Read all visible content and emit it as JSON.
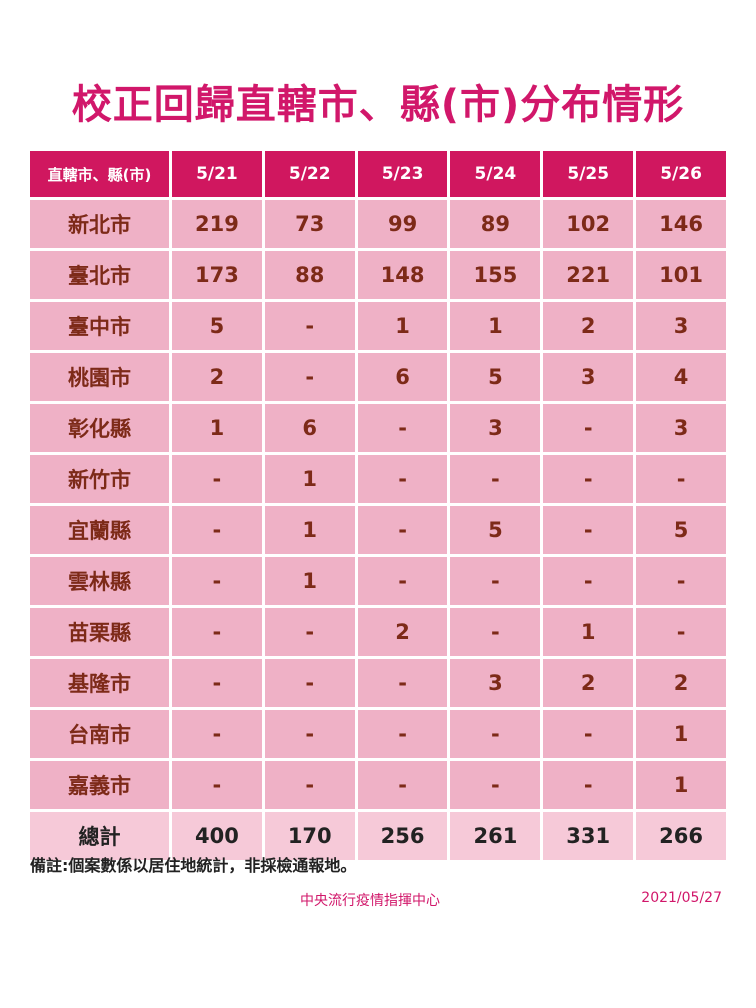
{
  "title": "校正回歸直轄市、縣(市)分布情形",
  "table": {
    "header": [
      "直轄市、縣(市)",
      "5/21",
      "5/22",
      "5/23",
      "5/24",
      "5/25",
      "5/26"
    ],
    "rows": [
      [
        "新北市",
        219,
        73,
        99,
        89,
        102,
        146
      ],
      [
        "臺北市",
        173,
        88,
        148,
        155,
        221,
        101
      ],
      [
        "臺中市",
        5,
        "-",
        1,
        1,
        2,
        3
      ],
      [
        "桃園市",
        2,
        "-",
        6,
        5,
        3,
        4
      ],
      [
        "彰化縣",
        1,
        6,
        "-",
        3,
        "-",
        3
      ],
      [
        "新竹市",
        "-",
        1,
        "-",
        "-",
        "-",
        "-"
      ],
      [
        "宜蘭縣",
        "-",
        1,
        "-",
        5,
        "-",
        5
      ],
      [
        "雲林縣",
        "-",
        1,
        "-",
        "-",
        "-",
        "-"
      ],
      [
        "苗栗縣",
        "-",
        "-",
        2,
        "-",
        1,
        "-"
      ],
      [
        "基隆市",
        "-",
        "-",
        "-",
        3,
        2,
        2
      ],
      [
        "台南市",
        "-",
        "-",
        "-",
        "-",
        "-",
        1
      ],
      [
        "嘉義市",
        "-",
        "-",
        "-",
        "-",
        "-",
        1
      ]
    ],
    "total": [
      "總計",
      400,
      170,
      256,
      261,
      331,
      266
    ]
  },
  "note": "備註:個案數係以居住地統計，非採檢通報地。",
  "source": "中央流行疫情指揮中心",
  "date": "2021/05/27"
}
